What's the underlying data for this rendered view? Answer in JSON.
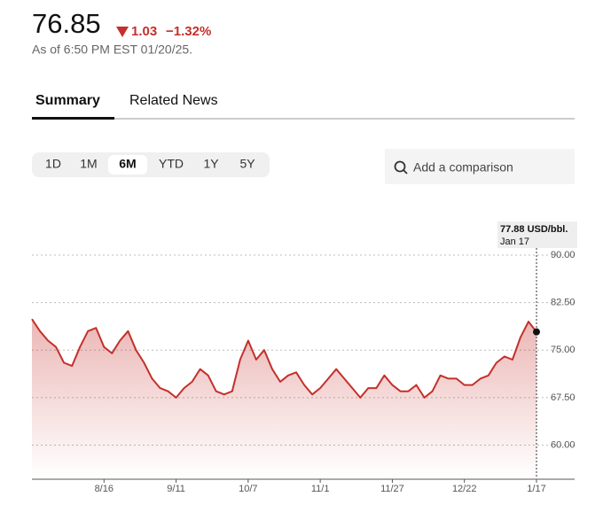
{
  "quote": {
    "price": "76.85",
    "change": "1.03",
    "change_pct": "−1.32%",
    "as_of": "As of 6:50 PM EST 01/20/25."
  },
  "tabs": [
    "Summary",
    "Related News"
  ],
  "ranges": [
    "1D",
    "1M",
    "6M",
    "YTD",
    "1Y",
    "5Y"
  ],
  "search_placeholder": "Add a comparison",
  "chart_data": {
    "type": "line",
    "color": "#c4302b",
    "values": [
      79.9,
      78.0,
      76.5,
      75.5,
      73.0,
      72.5,
      75.5,
      78.0,
      78.5,
      75.5,
      74.5,
      76.5,
      78.0,
      75.0,
      73.0,
      70.5,
      69.0,
      68.5,
      67.5,
      69.0,
      70.0,
      72.0,
      71.0,
      68.5,
      68.0,
      68.5,
      73.5,
      76.5,
      73.5,
      75.0,
      72.0,
      70.0,
      71.0,
      71.5,
      69.5,
      68.0,
      69.0,
      70.5,
      72.0,
      70.5,
      69.0,
      67.5,
      69.0,
      69.0,
      71.0,
      69.5,
      68.5,
      68.5,
      69.5,
      67.5,
      68.5,
      71.0,
      70.5,
      70.5,
      69.5,
      69.5,
      70.5,
      71.0,
      73.0,
      74.0,
      73.5,
      77.0,
      79.5,
      77.88
    ],
    "xlim": [
      0,
      63
    ],
    "xticks": [
      {
        "value": 9,
        "label": "8/16"
      },
      {
        "value": 18,
        "label": "9/11"
      },
      {
        "value": 27,
        "label": "10/7"
      },
      {
        "value": 36,
        "label": "11/1"
      },
      {
        "value": 45,
        "label": "11/27"
      },
      {
        "value": 54,
        "label": "12/22"
      },
      {
        "value": 63,
        "label": "1/17"
      }
    ],
    "ylim": [
      54.75,
      90
    ],
    "yticks": [
      {
        "value": 60,
        "label": "60.00"
      },
      {
        "value": 67.5,
        "label": "67.50"
      },
      {
        "value": 75,
        "label": "75.00"
      },
      {
        "value": 82.5,
        "label": "82.50"
      },
      {
        "value": 90,
        "label": "90.00"
      }
    ],
    "grid": true,
    "tooltip": {
      "label": "77.88 USD/bbl.",
      "date": "Jan 17"
    }
  }
}
